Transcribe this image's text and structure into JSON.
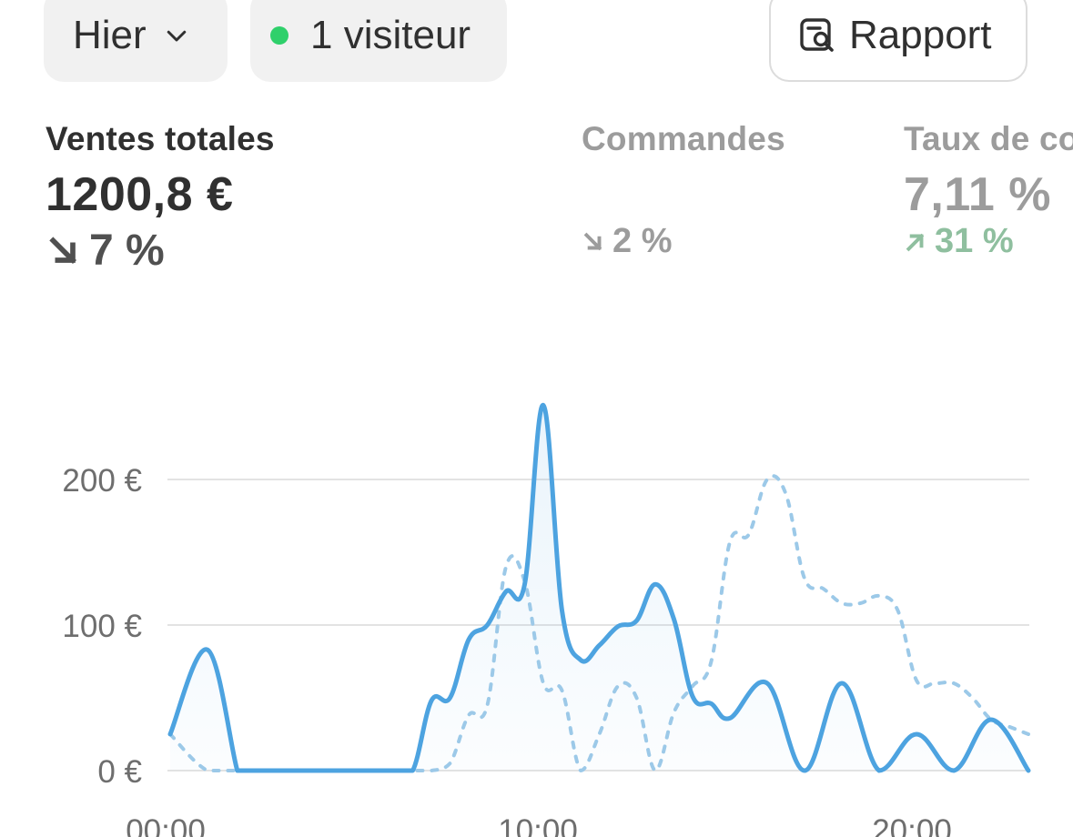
{
  "toolbar": {
    "date_label": "Hier",
    "visitors_label": "1 visiteur",
    "report_label": "Rapport",
    "visitor_dot_color": "#2fd06b"
  },
  "metrics": [
    {
      "label": "Ventes totales",
      "value": "1200,8 €",
      "change": "7 %",
      "direction": "down"
    },
    {
      "label": "Commandes",
      "value": "",
      "change": "2 %",
      "direction": "down"
    },
    {
      "label": "Taux de co",
      "value": "7,11 %",
      "change": "31 %",
      "direction": "up"
    }
  ],
  "chart_data": {
    "type": "line",
    "x_tick_labels": [
      "00:00",
      "10:00",
      "20:00"
    ],
    "y_tick_labels": [
      "0 €",
      "100 €",
      "200 €"
    ],
    "ylim": [
      0,
      260
    ],
    "xlim": [
      0,
      23
    ],
    "grid": true,
    "series": [
      {
        "style": "solid",
        "color": "#4da3e0",
        "x": [
          0,
          1,
          1.8,
          2,
          3,
          4,
          5,
          6,
          6.5,
          7,
          7.5,
          8,
          8.5,
          9,
          9.5,
          10,
          10.5,
          11,
          11.5,
          12,
          12.5,
          13,
          13.5,
          14,
          14.5,
          15,
          16,
          17,
          18,
          19,
          20,
          21,
          22,
          23
        ],
        "y": [
          25,
          83,
          0,
          0,
          0,
          0,
          0,
          0,
          0,
          48,
          50,
          90,
          100,
          123,
          128,
          251,
          110,
          76,
          86,
          99,
          103,
          128,
          104,
          51,
          46,
          36,
          60,
          0,
          60,
          0,
          25,
          0,
          35,
          0
        ]
      },
      {
        "style": "dashed",
        "color": "#9cc9e8",
        "x": [
          0,
          1,
          2,
          3,
          4,
          5,
          6,
          6.5,
          7,
          7.5,
          8,
          8.5,
          9,
          9.5,
          10,
          10.5,
          11,
          11.5,
          12,
          12.5,
          13,
          13.5,
          14,
          14.5,
          15,
          15.5,
          16,
          16.5,
          17,
          17.5,
          18,
          18.5,
          19,
          19.5,
          20,
          20.5,
          21,
          21.5,
          22,
          22.5,
          23
        ],
        "y": [
          25,
          0,
          0,
          0,
          0,
          0,
          0,
          0,
          0,
          5,
          38,
          45,
          140,
          130,
          60,
          55,
          0,
          25,
          58,
          50,
          0,
          40,
          58,
          75,
          157,
          162,
          200,
          190,
          132,
          125,
          115,
          115,
          120,
          110,
          62,
          60,
          60,
          50,
          35,
          30,
          25
        ]
      }
    ]
  }
}
